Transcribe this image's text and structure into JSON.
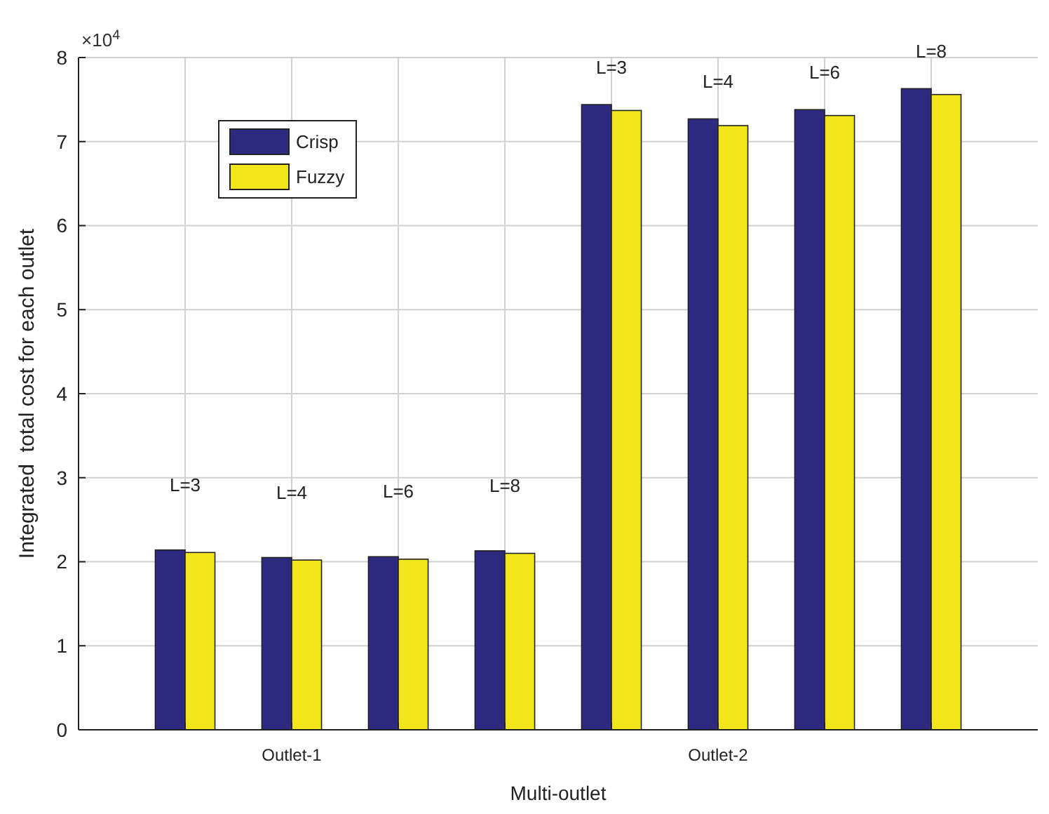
{
  "chart_data": {
    "type": "bar",
    "xlabel": "Multi-outlet",
    "ylabel": "Integrated  total cost for each outlet",
    "categories": [
      null,
      "Outlet-1",
      null,
      null,
      null,
      "Outlet-2",
      null,
      null
    ],
    "series": [
      {
        "name": "Crisp",
        "color": "#2e2a7f",
        "values": [
          2.14,
          2.05,
          2.06,
          2.13,
          7.44,
          7.27,
          7.38,
          7.63
        ]
      },
      {
        "name": "Fuzzy",
        "color": "#f0e619",
        "values": [
          2.11,
          2.02,
          2.03,
          2.1,
          7.37,
          7.19,
          7.31,
          7.56
        ]
      }
    ],
    "ylim": [
      0,
      8
    ],
    "yticks": [
      0,
      1,
      2,
      3,
      4,
      5,
      6,
      7,
      8
    ],
    "annotations": [
      "L=3",
      "L=4",
      "L=6",
      "L=8",
      "L=3",
      "L=4",
      "L=6",
      "L=8",
      "×10$^{4}$"
    ],
    "grid": true,
    "legend": "top left"
  }
}
